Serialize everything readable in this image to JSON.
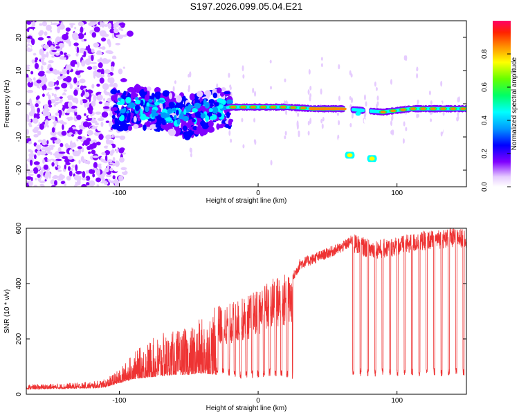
{
  "title": "S197.2026.099.05.04.E21",
  "chart_data": [
    {
      "type": "heatmap",
      "title": "S197.2026.099.05.04.E21",
      "xlabel": "Height of straight line (km)",
      "ylabel": "Frequency (Hz)",
      "xlim": [
        -167,
        150
      ],
      "ylim": [
        -25,
        25
      ],
      "xticks": [
        -100,
        0,
        100
      ],
      "yticks": [
        -20,
        -10,
        0,
        10,
        20
      ],
      "colorbar": {
        "label": "Normalized spectral amplitude",
        "range": [
          0,
          1
        ],
        "ticks": [
          0.0,
          0.2,
          0.4,
          0.6,
          0.8
        ],
        "tick_labels": [
          "0.0",
          "0.2",
          "0.4",
          "0.6",
          "0.8"
        ]
      },
      "noise_region_x": [
        -167,
        -108
      ],
      "echo_track_freq_hz": [
        {
          "x": -95,
          "f": -2
        },
        {
          "x": -85,
          "f": -1
        },
        {
          "x": -70,
          "f": -2
        },
        {
          "x": -50,
          "f": -4
        },
        {
          "x": -35,
          "f": -2
        },
        {
          "x": -20,
          "f": -1
        },
        {
          "x": 0,
          "f": -1
        },
        {
          "x": 20,
          "f": -1
        },
        {
          "x": 40,
          "f": -1.5
        },
        {
          "x": 60,
          "f": -1.5
        },
        {
          "x": 75,
          "f": -2
        },
        {
          "x": 90,
          "f": -2.5
        },
        {
          "x": 110,
          "f": -1.5
        },
        {
          "x": 130,
          "f": -1.5
        },
        {
          "x": 150,
          "f": -1.5
        }
      ],
      "secondary_tracks": [
        {
          "x": 66,
          "f": -15.5
        },
        {
          "x": 82,
          "f": -16.5
        }
      ]
    },
    {
      "type": "line",
      "xlabel": "Height of straight line (km)",
      "ylabel": "SNR (10 * v/v)",
      "xlim": [
        -167,
        150
      ],
      "ylim": [
        0,
        600
      ],
      "xticks": [
        -100,
        0,
        100
      ],
      "yticks": [
        0,
        200,
        400,
        600
      ],
      "color": "#ee3333",
      "series_envelope": {
        "name": "SNR",
        "x": [
          -167,
          -140,
          -120,
          -110,
          -100,
          -90,
          -80,
          -70,
          -60,
          -50,
          -40,
          -30,
          -20,
          -10,
          0,
          10,
          20,
          25,
          30,
          40,
          50,
          60,
          66,
          70,
          80,
          90,
          100,
          110,
          120,
          130,
          140,
          150
        ],
        "baseline": [
          18,
          20,
          22,
          25,
          40,
          55,
          60,
          65,
          70,
          70,
          75,
          70,
          60,
          55,
          60,
          65,
          60,
          55,
          400,
          430,
          460,
          480,
          500,
          80,
          75,
          70,
          75,
          75,
          70,
          70,
          70,
          70
        ],
        "peak": [
          35,
          40,
          45,
          55,
          90,
          150,
          190,
          220,
          230,
          240,
          280,
          320,
          330,
          350,
          380,
          420,
          440,
          430,
          480,
          500,
          520,
          540,
          560,
          580,
          560,
          560,
          570,
          580,
          590,
          595,
          600,
          600
        ]
      },
      "plateau_start_x": 25,
      "dropout_start_x": 68
    }
  ]
}
